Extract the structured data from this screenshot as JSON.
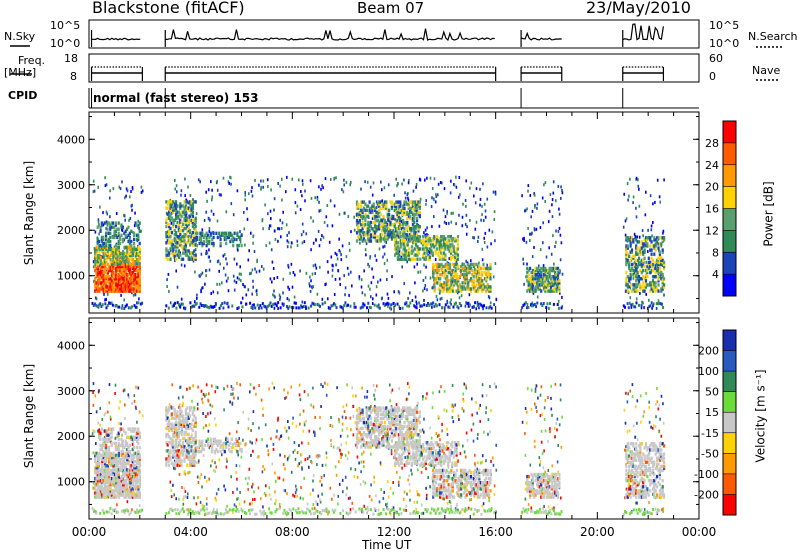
{
  "header": {
    "station": "Blackstone (fitACF)",
    "beam": "Beam 07",
    "date": "23/May/2010"
  },
  "panels": {
    "nsky_label": "N.Sky",
    "nsearch_label": "N.Search",
    "freq_label_top": "Freq.",
    "freq_label_bottom": "[MHz]",
    "nave_label": "Nave",
    "cpid_label": "CPID",
    "cpid_value": "normal (fast stereo) 153",
    "nsky_ticks": [
      "10^5",
      "10^0"
    ],
    "nsearch_ticks": [
      "10^5",
      "10^0"
    ],
    "freq_ticks": [
      "18",
      "8"
    ],
    "nave_ticks": [
      "60",
      "0"
    ]
  },
  "colors": {
    "power_scale": [
      "#0000ff",
      "#1a44b8",
      "#2e8b57",
      "#5aa06e",
      "#ffd200",
      "#ff9a00",
      "#ff5a00",
      "#ff0000"
    ],
    "velocity_scale": [
      "#1a2eb0",
      "#2a5cc0",
      "#2e8b57",
      "#6cdc3c",
      "#c8c8c8",
      "#ffd200",
      "#ff9a00",
      "#ff5a00",
      "#ff0000"
    ]
  },
  "chart_data": [
    {
      "type": "heatmap",
      "ylabel": "Slant Range [km]",
      "xlabel": "",
      "x_ticks": [
        "00:00",
        "04:00",
        "08:00",
        "12:00",
        "16:00",
        "20:00",
        "00:00"
      ],
      "x_range_hours": [
        0,
        24
      ],
      "y_ticks": [
        1000,
        2000,
        3000,
        4000
      ],
      "ylim": [
        180,
        4600
      ],
      "colorbar_label": "Power [dB]",
      "colorbar_ticks": [
        "4",
        "8",
        "12",
        "16",
        "20",
        "24",
        "28"
      ],
      "colorbar_range": [
        0,
        32
      ]
    },
    {
      "type": "heatmap",
      "ylabel": "Slant Range [km]",
      "xlabel": "Time UT",
      "x_ticks": [
        "00:00",
        "04:00",
        "08:00",
        "12:00",
        "16:00",
        "20:00",
        "00:00"
      ],
      "x_range_hours": [
        0,
        24
      ],
      "y_ticks": [
        1000,
        2000,
        3000,
        4000
      ],
      "ylim": [
        180,
        4600
      ],
      "colorbar_label": "Velocity [m s⁻¹]",
      "colorbar_ticks": [
        "200",
        "100",
        "50",
        "15",
        "-15",
        "-50",
        "-100",
        "-200"
      ]
    }
  ]
}
